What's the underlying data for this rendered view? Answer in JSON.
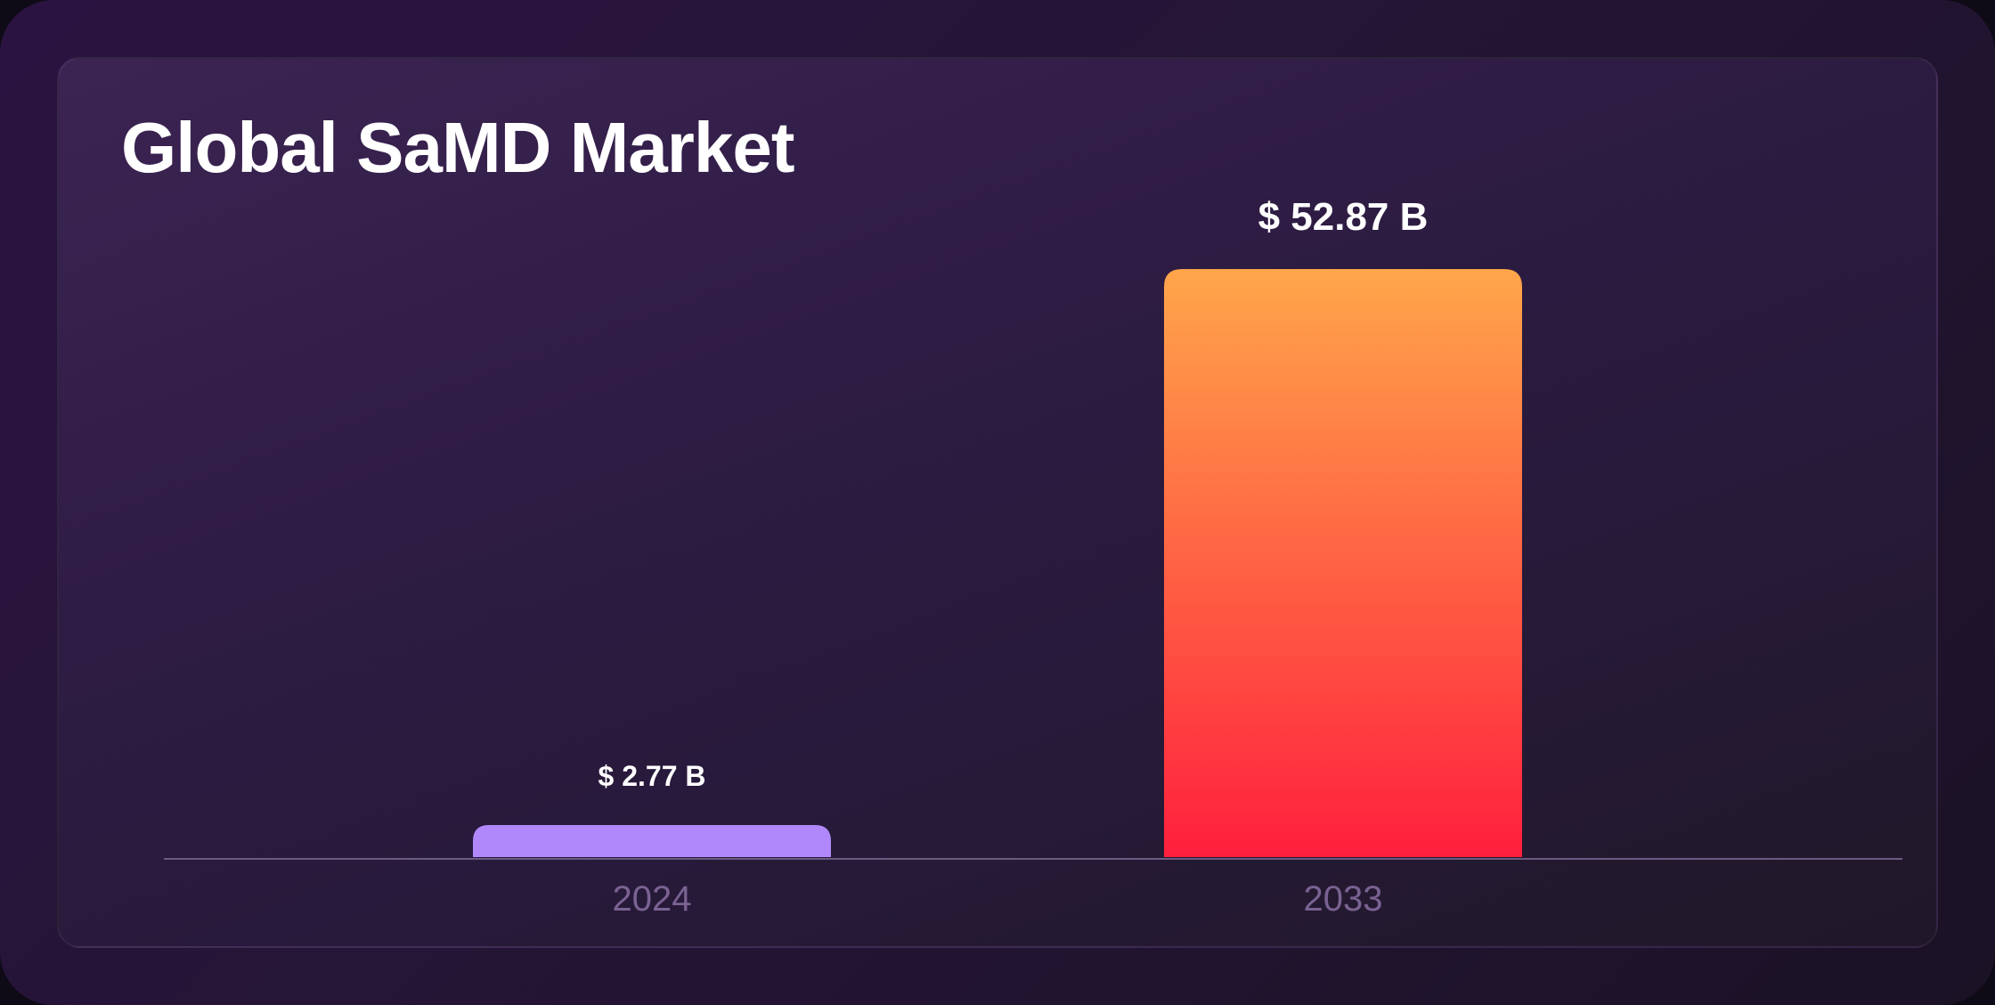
{
  "colors": {
    "bar_2024": "#b088fc",
    "bar_2033_top": "#ffa64a",
    "bar_2033_bottom": "#ff1f3d",
    "axis": "#6b5a80"
  },
  "chart_data": {
    "type": "bar",
    "title": "Global SaMD Market",
    "categories": [
      "2024",
      "2033"
    ],
    "values": [
      2.77,
      52.87
    ],
    "value_labels": [
      "$ 2.77 B",
      "$ 52.87 B"
    ],
    "xlabel": "",
    "ylabel": "",
    "ylim": [
      0,
      52.87
    ],
    "grid": false
  }
}
